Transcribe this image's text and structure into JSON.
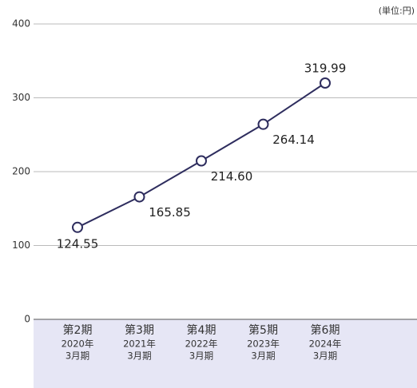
{
  "chart_data": {
    "type": "line",
    "unit_label": "(単位:円)",
    "categories": [
      [
        "第2期",
        "2020年",
        "3月期"
      ],
      [
        "第3期",
        "2021年",
        "3月期"
      ],
      [
        "第4期",
        "2022年",
        "3月期"
      ],
      [
        "第5期",
        "2023年",
        "3月期"
      ],
      [
        "第6期",
        "2024年",
        "3月期"
      ]
    ],
    "values": [
      124.55,
      165.85,
      214.6,
      264.14,
      319.99
    ],
    "value_labels": [
      "124.55",
      "165.85",
      "214.60",
      "264.14",
      "319.99"
    ],
    "color": "#2e2d5e",
    "ylim": [
      0,
      400
    ],
    "yticks": [
      0,
      100,
      200,
      300,
      400
    ],
    "grid": true
  }
}
